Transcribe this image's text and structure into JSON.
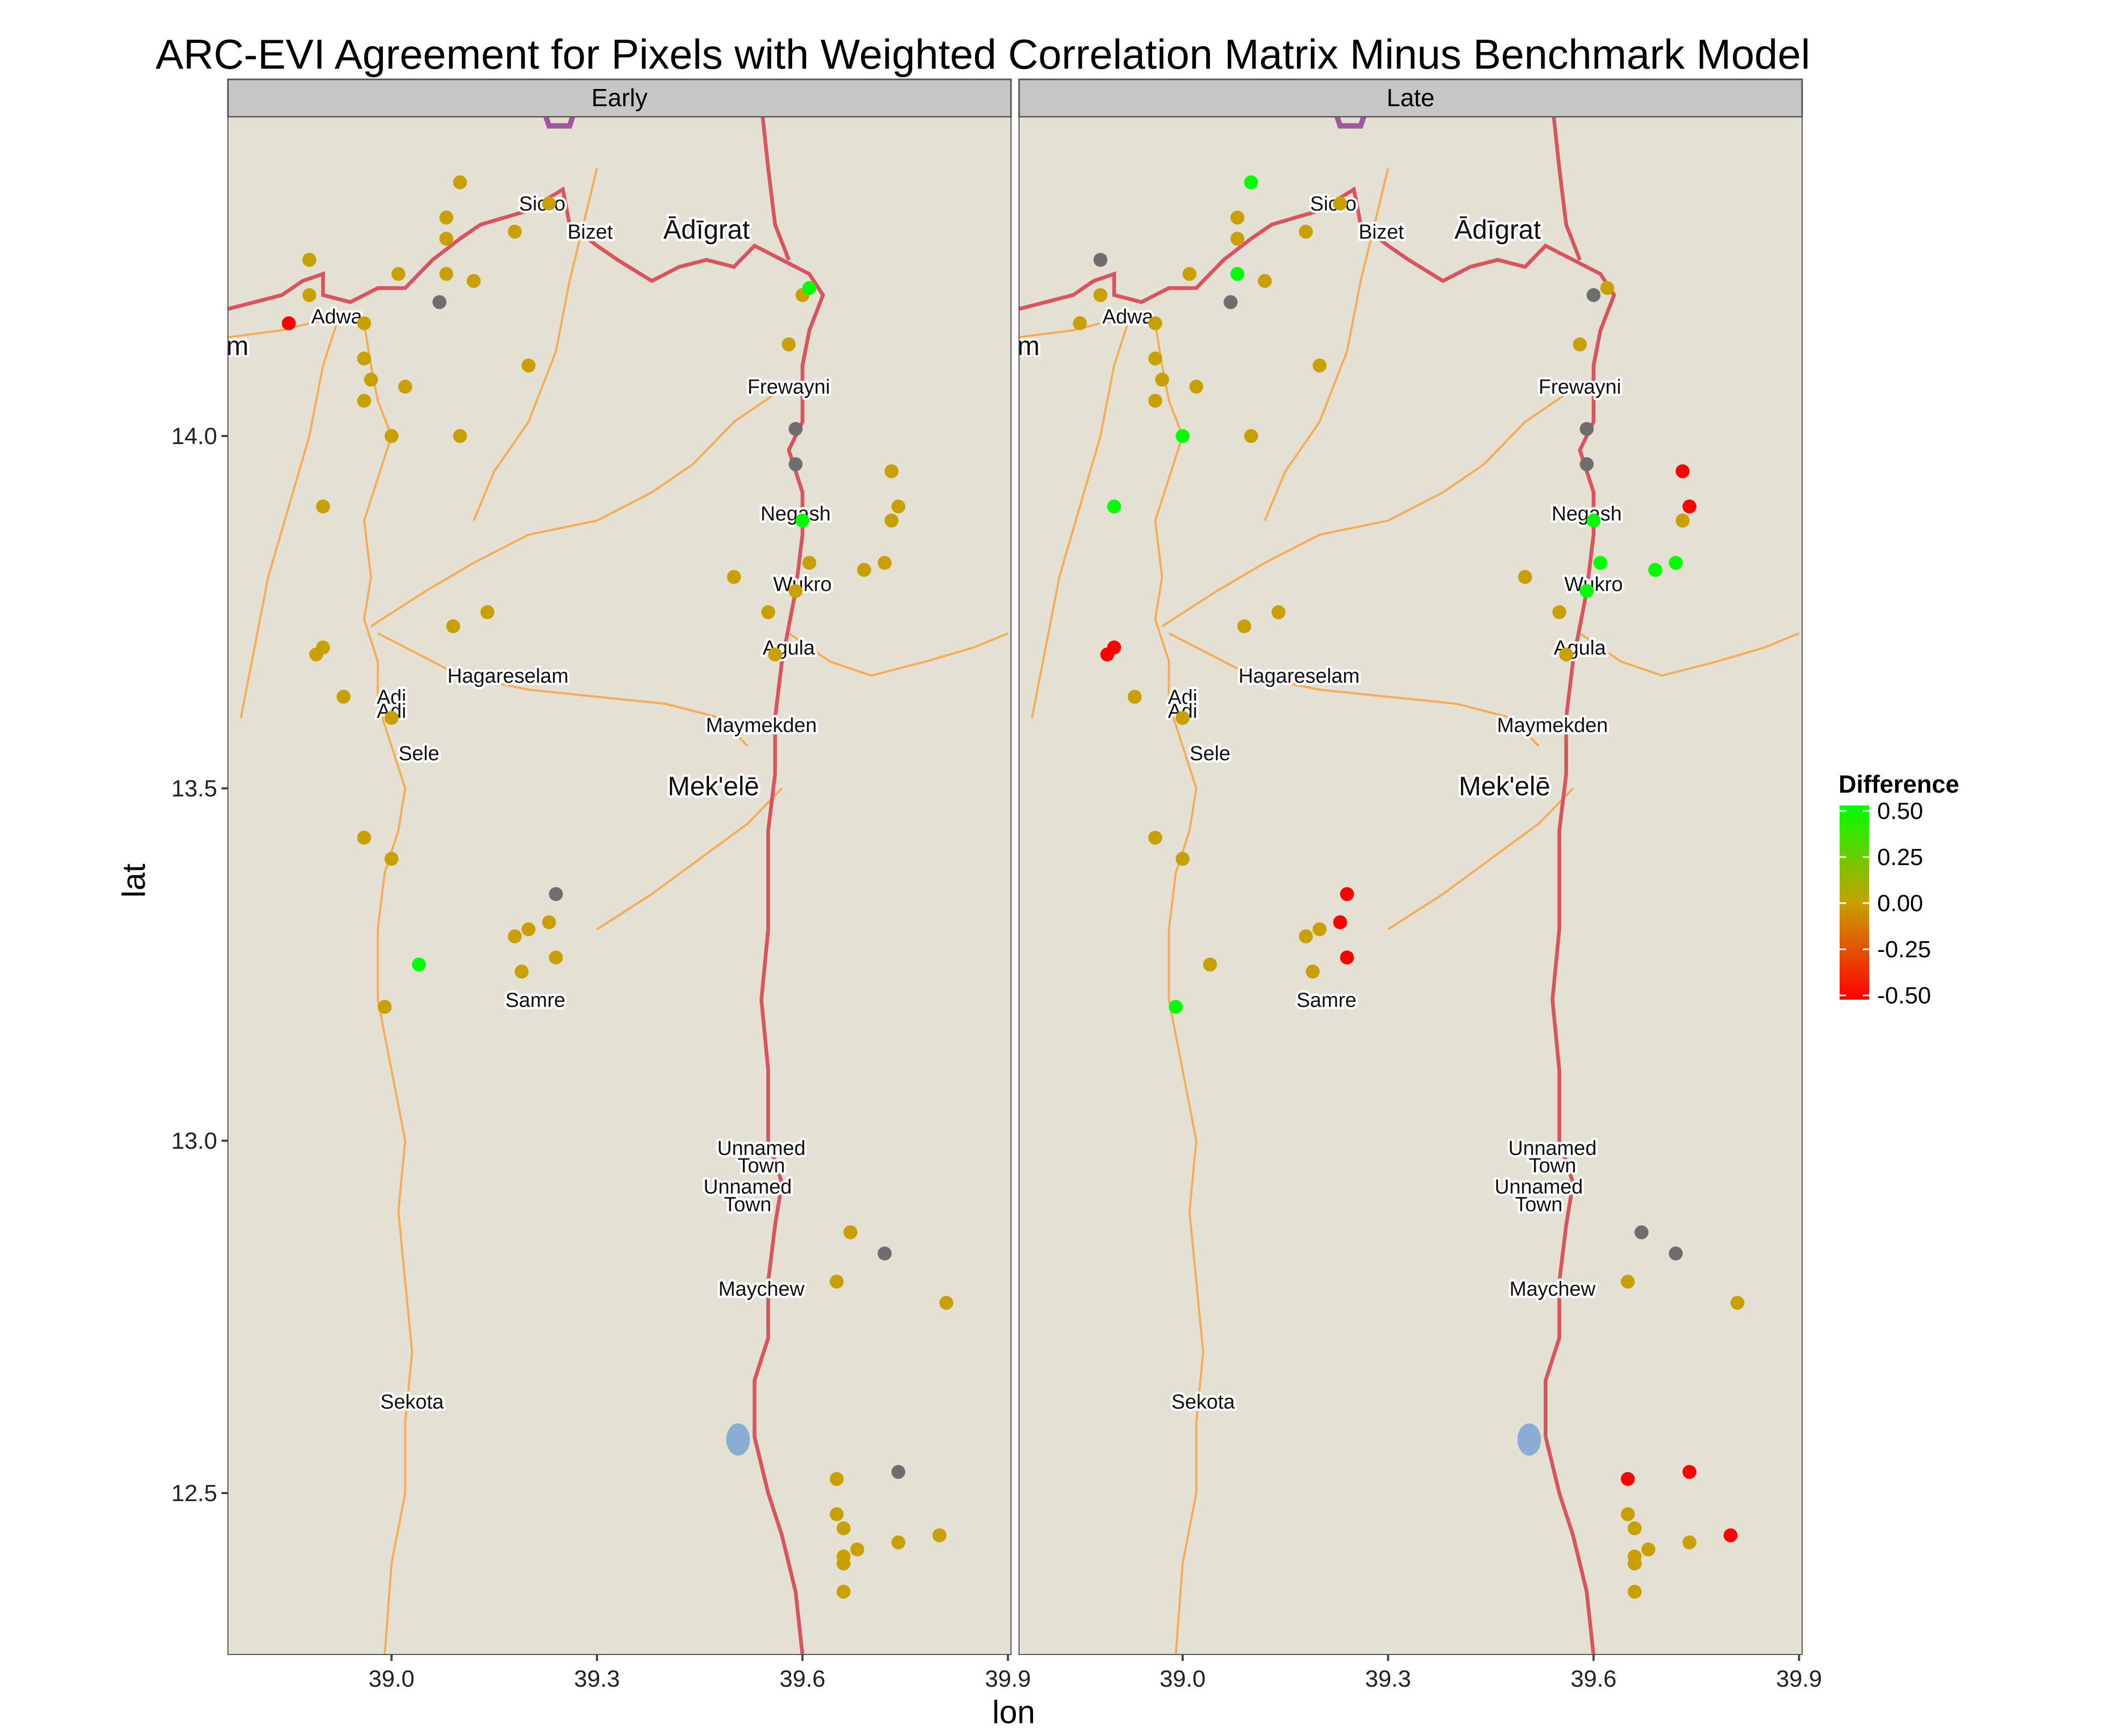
{
  "title": "ARC-EVI Agreement for Pixels with Weighted Correlation Matrix Minus Benchmark Model",
  "xlabel": "lon",
  "ylabel": "lat",
  "legend": {
    "title": "Difference",
    "labels": [
      "0.50",
      "0.25",
      "0.00",
      "-0.25",
      "-0.50"
    ],
    "colors": {
      "low": "#ff0000",
      "mid": "#c8a000",
      "high": "#00ff00",
      "na": "#6e6e6e"
    }
  },
  "map_colors": {
    "background": "#e4e1d4",
    "border": "#d8545e",
    "roads": "#f6ac54",
    "water": "#8aaed3",
    "region": "#a057a0"
  },
  "panels": [
    "Early",
    "Late"
  ],
  "cities": [
    {
      "name": "Adwa",
      "lon": 38.92,
      "lat": 14.16
    },
    {
      "name": "Sicro",
      "lon": 39.22,
      "lat": 14.32
    },
    {
      "name": "Bizet",
      "lon": 39.29,
      "lat": 14.28
    },
    {
      "name": "Ādīgrat",
      "lon": 39.46,
      "lat": 14.28,
      "big": true
    },
    {
      "name": "Frewayni",
      "lon": 39.58,
      "lat": 14.06
    },
    {
      "name": "Negash",
      "lon": 39.59,
      "lat": 13.88
    },
    {
      "name": "Wukro",
      "lon": 39.6,
      "lat": 13.78
    },
    {
      "name": "Agula",
      "lon": 39.58,
      "lat": 13.69
    },
    {
      "name": "Hagareselam",
      "lon": 39.17,
      "lat": 13.65
    },
    {
      "name": "Adi",
      "lon": 39.0,
      "lat": 13.62
    },
    {
      "name": "Adi",
      "lon": 39.0,
      "lat": 13.6
    },
    {
      "name": "Sele",
      "lon": 39.04,
      "lat": 13.54
    },
    {
      "name": "Maymekden",
      "lon": 39.54,
      "lat": 13.58
    },
    {
      "name": "Mek'elē",
      "lon": 39.47,
      "lat": 13.49,
      "big": true
    },
    {
      "name": "Samre",
      "lon": 39.21,
      "lat": 13.19
    },
    {
      "name": "Unnamed",
      "lon": 39.54,
      "lat": 12.98
    },
    {
      "name": "Town",
      "lon": 39.54,
      "lat": 12.955
    },
    {
      "name": "Unnamed",
      "lon": 39.52,
      "lat": 12.925
    },
    {
      "name": "Town",
      "lon": 39.52,
      "lat": 12.9
    },
    {
      "name": "Maychew",
      "lon": 39.54,
      "lat": 12.78
    },
    {
      "name": "Sekota",
      "lon": 39.03,
      "lat": 12.62
    },
    {
      "name": "m",
      "lon": 38.775,
      "lat": 14.115,
      "big": true
    }
  ],
  "chart_data": [
    {
      "type": "scatter",
      "panel": "Early",
      "xlabel": "lon",
      "ylabel": "lat",
      "xlim": [
        38.76,
        39.9
      ],
      "ylim": [
        12.27,
        14.47
      ],
      "xticks": [
        "39.0",
        "39.3",
        "39.6",
        "39.9"
      ],
      "yticks": [
        "12.5",
        "13.0",
        "13.5",
        "14.0"
      ],
      "color_scale": [
        -0.5,
        0.5
      ],
      "points": [
        {
          "lon": 39.1,
          "lat": 14.36,
          "diff": 0.0
        },
        {
          "lon": 39.23,
          "lat": 14.33,
          "diff": 0.0
        },
        {
          "lon": 39.08,
          "lat": 14.31,
          "diff": 0.0
        },
        {
          "lon": 39.08,
          "lat": 14.28,
          "diff": 0.0
        },
        {
          "lon": 39.18,
          "lat": 14.29,
          "diff": 0.0
        },
        {
          "lon": 38.88,
          "lat": 14.25,
          "diff": 0.0
        },
        {
          "lon": 39.01,
          "lat": 14.23,
          "diff": 0.0
        },
        {
          "lon": 39.08,
          "lat": 14.23,
          "diff": 0.0
        },
        {
          "lon": 39.12,
          "lat": 14.22,
          "diff": 0.0
        },
        {
          "lon": 38.88,
          "lat": 14.2,
          "diff": 0.0
        },
        {
          "lon": 39.07,
          "lat": 14.19,
          "diff": null
        },
        {
          "lon": 38.85,
          "lat": 14.16,
          "diff": -0.5
        },
        {
          "lon": 38.96,
          "lat": 14.16,
          "diff": 0.0
        },
        {
          "lon": 38.96,
          "lat": 14.11,
          "diff": 0.0
        },
        {
          "lon": 39.2,
          "lat": 14.1,
          "diff": 0.0
        },
        {
          "lon": 38.97,
          "lat": 14.08,
          "diff": 0.0
        },
        {
          "lon": 39.02,
          "lat": 14.07,
          "diff": 0.0
        },
        {
          "lon": 38.96,
          "lat": 14.05,
          "diff": 0.0
        },
        {
          "lon": 39.0,
          "lat": 14.0,
          "diff": 0.0
        },
        {
          "lon": 39.1,
          "lat": 14.0,
          "diff": 0.0
        },
        {
          "lon": 39.6,
          "lat": 14.2,
          "diff": 0.0
        },
        {
          "lon": 39.61,
          "lat": 14.21,
          "diff": 0.5
        },
        {
          "lon": 39.58,
          "lat": 14.13,
          "diff": 0.0
        },
        {
          "lon": 39.59,
          "lat": 14.01,
          "diff": null
        },
        {
          "lon": 39.59,
          "lat": 13.96,
          "diff": null
        },
        {
          "lon": 38.9,
          "lat": 13.9,
          "diff": 0.0
        },
        {
          "lon": 39.73,
          "lat": 13.95,
          "diff": 0.0
        },
        {
          "lon": 39.74,
          "lat": 13.9,
          "diff": 0.0
        },
        {
          "lon": 39.73,
          "lat": 13.88,
          "diff": 0.0
        },
        {
          "lon": 39.6,
          "lat": 13.88,
          "diff": 0.5
        },
        {
          "lon": 39.61,
          "lat": 13.82,
          "diff": 0.0
        },
        {
          "lon": 39.69,
          "lat": 13.81,
          "diff": 0.0
        },
        {
          "lon": 39.72,
          "lat": 13.82,
          "diff": 0.0
        },
        {
          "lon": 39.5,
          "lat": 13.8,
          "diff": 0.0
        },
        {
          "lon": 39.59,
          "lat": 13.78,
          "diff": 0.0
        },
        {
          "lon": 39.55,
          "lat": 13.75,
          "diff": 0.0
        },
        {
          "lon": 39.14,
          "lat": 13.75,
          "diff": 0.0
        },
        {
          "lon": 39.09,
          "lat": 13.73,
          "diff": 0.0
        },
        {
          "lon": 38.9,
          "lat": 13.7,
          "diff": 0.0
        },
        {
          "lon": 38.89,
          "lat": 13.69,
          "diff": 0.0
        },
        {
          "lon": 39.56,
          "lat": 13.69,
          "diff": 0.0
        },
        {
          "lon": 38.93,
          "lat": 13.63,
          "diff": 0.0
        },
        {
          "lon": 39.0,
          "lat": 13.6,
          "diff": 0.0
        },
        {
          "lon": 38.96,
          "lat": 13.43,
          "diff": 0.0
        },
        {
          "lon": 39.0,
          "lat": 13.4,
          "diff": 0.0
        },
        {
          "lon": 39.24,
          "lat": 13.35,
          "diff": null
        },
        {
          "lon": 39.23,
          "lat": 13.31,
          "diff": 0.0
        },
        {
          "lon": 39.2,
          "lat": 13.3,
          "diff": 0.0
        },
        {
          "lon": 39.18,
          "lat": 13.29,
          "diff": 0.0
        },
        {
          "lon": 39.04,
          "lat": 13.25,
          "diff": 0.5
        },
        {
          "lon": 39.24,
          "lat": 13.26,
          "diff": 0.0
        },
        {
          "lon": 39.19,
          "lat": 13.24,
          "diff": 0.0
        },
        {
          "lon": 38.99,
          "lat": 13.19,
          "diff": 0.0
        },
        {
          "lon": 39.67,
          "lat": 12.87,
          "diff": 0.0
        },
        {
          "lon": 39.72,
          "lat": 12.84,
          "diff": null
        },
        {
          "lon": 39.65,
          "lat": 12.8,
          "diff": 0.0
        },
        {
          "lon": 39.81,
          "lat": 12.77,
          "diff": 0.0
        },
        {
          "lon": 39.74,
          "lat": 12.53,
          "diff": null
        },
        {
          "lon": 39.65,
          "lat": 12.52,
          "diff": 0.0
        },
        {
          "lon": 39.65,
          "lat": 12.47,
          "diff": 0.0
        },
        {
          "lon": 39.66,
          "lat": 12.45,
          "diff": 0.0
        },
        {
          "lon": 39.8,
          "lat": 12.44,
          "diff": 0.0
        },
        {
          "lon": 39.74,
          "lat": 12.43,
          "diff": 0.0
        },
        {
          "lon": 39.68,
          "lat": 12.42,
          "diff": 0.0
        },
        {
          "lon": 39.66,
          "lat": 12.41,
          "diff": 0.0
        },
        {
          "lon": 39.66,
          "lat": 12.4,
          "diff": 0.0
        },
        {
          "lon": 39.66,
          "lat": 12.36,
          "diff": 0.0
        }
      ]
    },
    {
      "type": "scatter",
      "panel": "Late",
      "xlabel": "lon",
      "ylabel": "lat",
      "xlim": [
        38.76,
        39.9
      ],
      "ylim": [
        12.27,
        14.47
      ],
      "xticks": [
        "39.0",
        "39.3",
        "39.6",
        "39.9"
      ],
      "yticks": [
        "12.5",
        "13.0",
        "13.5",
        "14.0"
      ],
      "color_scale": [
        -0.5,
        0.5
      ],
      "points": [
        {
          "lon": 39.1,
          "lat": 14.36,
          "diff": 0.5
        },
        {
          "lon": 39.23,
          "lat": 14.33,
          "diff": 0.0
        },
        {
          "lon": 39.08,
          "lat": 14.31,
          "diff": 0.0
        },
        {
          "lon": 39.08,
          "lat": 14.28,
          "diff": 0.0
        },
        {
          "lon": 39.18,
          "lat": 14.29,
          "diff": 0.0
        },
        {
          "lon": 38.88,
          "lat": 14.25,
          "diff": null
        },
        {
          "lon": 39.01,
          "lat": 14.23,
          "diff": 0.0
        },
        {
          "lon": 39.08,
          "lat": 14.23,
          "diff": 0.5
        },
        {
          "lon": 39.12,
          "lat": 14.22,
          "diff": 0.0
        },
        {
          "lon": 38.88,
          "lat": 14.2,
          "diff": 0.0
        },
        {
          "lon": 39.07,
          "lat": 14.19,
          "diff": null
        },
        {
          "lon": 38.85,
          "lat": 14.16,
          "diff": 0.0
        },
        {
          "lon": 38.96,
          "lat": 14.16,
          "diff": 0.0
        },
        {
          "lon": 38.96,
          "lat": 14.11,
          "diff": 0.0
        },
        {
          "lon": 39.2,
          "lat": 14.1,
          "diff": 0.0
        },
        {
          "lon": 38.97,
          "lat": 14.08,
          "diff": 0.0
        },
        {
          "lon": 39.02,
          "lat": 14.07,
          "diff": 0.0
        },
        {
          "lon": 38.96,
          "lat": 14.05,
          "diff": 0.0
        },
        {
          "lon": 39.0,
          "lat": 14.0,
          "diff": 0.5
        },
        {
          "lon": 39.1,
          "lat": 14.0,
          "diff": 0.0
        },
        {
          "lon": 39.6,
          "lat": 14.2,
          "diff": null
        },
        {
          "lon": 39.62,
          "lat": 14.21,
          "diff": 0.0
        },
        {
          "lon": 39.58,
          "lat": 14.13,
          "diff": 0.0
        },
        {
          "lon": 39.59,
          "lat": 14.01,
          "diff": null
        },
        {
          "lon": 39.59,
          "lat": 13.96,
          "diff": null
        },
        {
          "lon": 38.9,
          "lat": 13.9,
          "diff": 0.5
        },
        {
          "lon": 39.73,
          "lat": 13.95,
          "diff": -0.5
        },
        {
          "lon": 39.74,
          "lat": 13.9,
          "diff": -0.5
        },
        {
          "lon": 39.73,
          "lat": 13.88,
          "diff": 0.0
        },
        {
          "lon": 39.6,
          "lat": 13.88,
          "diff": 0.5
        },
        {
          "lon": 39.61,
          "lat": 13.82,
          "diff": 0.5
        },
        {
          "lon": 39.69,
          "lat": 13.81,
          "diff": 0.5
        },
        {
          "lon": 39.72,
          "lat": 13.82,
          "diff": 0.5
        },
        {
          "lon": 39.5,
          "lat": 13.8,
          "diff": 0.0
        },
        {
          "lon": 39.59,
          "lat": 13.78,
          "diff": 0.5
        },
        {
          "lon": 39.55,
          "lat": 13.75,
          "diff": 0.0
        },
        {
          "lon": 39.14,
          "lat": 13.75,
          "diff": 0.0
        },
        {
          "lon": 39.09,
          "lat": 13.73,
          "diff": 0.0
        },
        {
          "lon": 38.9,
          "lat": 13.7,
          "diff": -0.5
        },
        {
          "lon": 38.89,
          "lat": 13.69,
          "diff": -0.5
        },
        {
          "lon": 39.56,
          "lat": 13.69,
          "diff": 0.0
        },
        {
          "lon": 38.93,
          "lat": 13.63,
          "diff": 0.0
        },
        {
          "lon": 39.0,
          "lat": 13.6,
          "diff": 0.0
        },
        {
          "lon": 38.96,
          "lat": 13.43,
          "diff": 0.0
        },
        {
          "lon": 39.0,
          "lat": 13.4,
          "diff": 0.0
        },
        {
          "lon": 39.24,
          "lat": 13.35,
          "diff": -0.5
        },
        {
          "lon": 39.23,
          "lat": 13.31,
          "diff": -0.5
        },
        {
          "lon": 39.2,
          "lat": 13.3,
          "diff": 0.0
        },
        {
          "lon": 39.18,
          "lat": 13.29,
          "diff": 0.0
        },
        {
          "lon": 39.04,
          "lat": 13.25,
          "diff": 0.0
        },
        {
          "lon": 39.24,
          "lat": 13.26,
          "diff": -0.5
        },
        {
          "lon": 39.19,
          "lat": 13.24,
          "diff": 0.0
        },
        {
          "lon": 38.99,
          "lat": 13.19,
          "diff": 0.5
        },
        {
          "lon": 39.67,
          "lat": 12.87,
          "diff": null
        },
        {
          "lon": 39.72,
          "lat": 12.84,
          "diff": null
        },
        {
          "lon": 39.65,
          "lat": 12.8,
          "diff": 0.0
        },
        {
          "lon": 39.81,
          "lat": 12.77,
          "diff": 0.0
        },
        {
          "lon": 39.74,
          "lat": 12.53,
          "diff": -0.5
        },
        {
          "lon": 39.65,
          "lat": 12.52,
          "diff": -0.5
        },
        {
          "lon": 39.65,
          "lat": 12.47,
          "diff": 0.0
        },
        {
          "lon": 39.66,
          "lat": 12.45,
          "diff": 0.0
        },
        {
          "lon": 39.8,
          "lat": 12.44,
          "diff": -0.5
        },
        {
          "lon": 39.74,
          "lat": 12.43,
          "diff": 0.0
        },
        {
          "lon": 39.68,
          "lat": 12.42,
          "diff": 0.0
        },
        {
          "lon": 39.66,
          "lat": 12.41,
          "diff": 0.0
        },
        {
          "lon": 39.66,
          "lat": 12.4,
          "diff": 0.0
        },
        {
          "lon": 39.66,
          "lat": 12.36,
          "diff": 0.0
        }
      ]
    }
  ]
}
